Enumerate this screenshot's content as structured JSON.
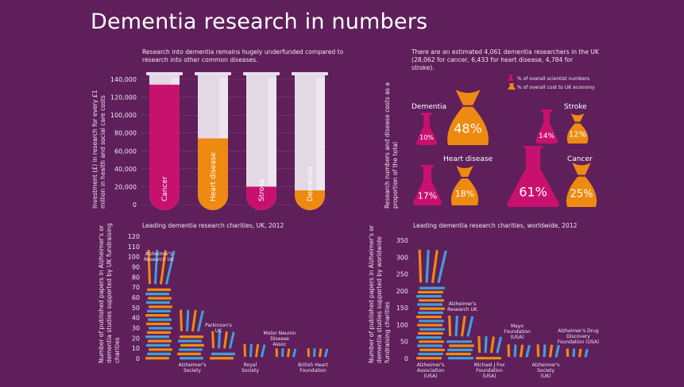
{
  "title": "Dementia research in numbers",
  "colors": {
    "background": "#5e1f5b",
    "magenta": "#c8116f",
    "orange": "#ee8a10",
    "blue": "#3f9fd9",
    "tube_glass": "#e3d9e5"
  },
  "chart_data": [
    {
      "type": "bar",
      "id": "tubes",
      "subtitle": "Research into dementia remains hugely underfunded compared to research into other common diseases.",
      "ylabel": "Investment (£) in research for every £1 million in health and social care costs",
      "ylim": [
        0,
        140000
      ],
      "yticks": [
        "140,000",
        "120,000",
        "100,000",
        "80,000",
        "60,000",
        "40,000",
        "20,000",
        "0"
      ],
      "categories": [
        "Cancer",
        "Heart disease",
        "Stroke",
        "Dementia"
      ],
      "values": [
        134000,
        74000,
        20000,
        16000
      ],
      "bar_colors": [
        "#c8116f",
        "#ee8a10",
        "#c8116f",
        "#ee8a10"
      ]
    },
    {
      "type": "other",
      "id": "flasks_bags",
      "subtitle": "There are an estimated 4,061 dementia researchers in the UK (28,062 for cancer, 6,433 for heart disease, 4,784 for stroke).",
      "ylabel": "Research numbers and disease costs as a proportion of the total",
      "legend": [
        "% of overall scientist numbers",
        "% of overall cost to UK economy"
      ],
      "groups": [
        {
          "name": "Dementia",
          "scientists": 10,
          "cost": 48,
          "scientists_label": "10%",
          "cost_label": "48%"
        },
        {
          "name": "Stroke",
          "scientists": 14,
          "cost": 12,
          "scientists_label": "14%",
          "cost_label": "12%"
        },
        {
          "name": "Heart disease",
          "scientists": 17,
          "cost": 18,
          "scientists_label": "17%",
          "cost_label": "18%"
        },
        {
          "name": "Cancer",
          "scientists": 61,
          "cost": 25,
          "scientists_label": "61%",
          "cost_label": "25%"
        }
      ]
    },
    {
      "type": "bar",
      "id": "uk_charities",
      "subtitle": "Leading dementia research charities, UK, 2012",
      "ylabel": "Number of published papers in Alzheimer's or dementia studies supported by UK fundraising charities",
      "ylim": [
        0,
        130
      ],
      "yticks": [
        "120",
        "110",
        "100",
        "90",
        "80",
        "70",
        "60",
        "50",
        "40",
        "30",
        "20",
        "10",
        "0"
      ],
      "categories": [
        "Alzheimer's Research UK",
        "Alzheimer's Society",
        "Parkinson's UK",
        "Royal Society",
        "Motor Neuron Disease Assoc",
        "British Heart Foundation"
      ],
      "values": [
        112,
        48,
        26,
        15,
        10,
        8
      ]
    },
    {
      "type": "bar",
      "id": "world_charities",
      "subtitle": "Leading dementia research charities, worldwide, 2012",
      "ylabel": "Number of published papers in Alzheimer's or dementia studies supported by worldwide fundraising charities",
      "ylim": [
        0,
        350
      ],
      "yticks": [
        "350",
        "300",
        "250",
        "200",
        "150",
        "100",
        "50",
        "0"
      ],
      "categories": [
        "Alzheimer's Association (USA)",
        "Alzheimer's Research UK",
        "Michael J Fox Foundation (USA)",
        "Mayo Foundation (USA)",
        "Alzheimer's Society (UK)",
        "Alzheimer's Drug Discovery Foundation (USA)"
      ],
      "values": [
        318,
        118,
        66,
        40,
        32,
        30
      ]
    }
  ]
}
